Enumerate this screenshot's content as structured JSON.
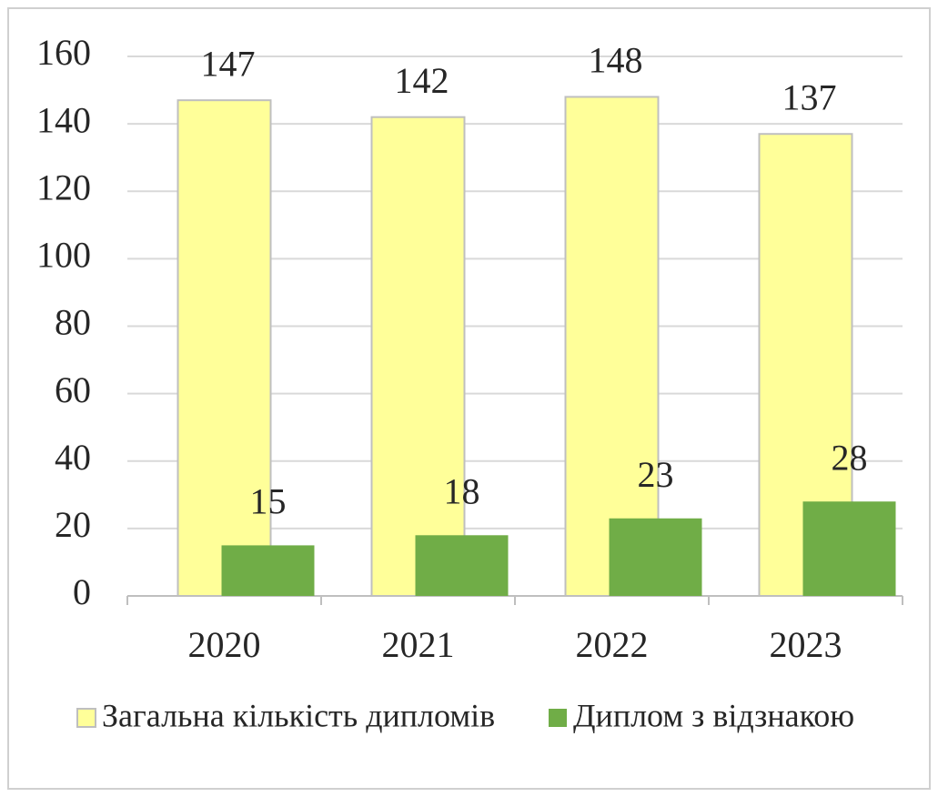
{
  "chart_data": {
    "type": "bar",
    "categories": [
      "2020",
      "2021",
      "2022",
      "2023"
    ],
    "series": [
      {
        "name": "Загальна кількість дипломів",
        "color": "#ffff99",
        "values": [
          147,
          142,
          148,
          137
        ]
      },
      {
        "name": "Диплом з відзнакою",
        "color": "#70ad47",
        "values": [
          15,
          18,
          23,
          28
        ]
      }
    ],
    "ylim": [
      0,
      160
    ],
    "yticks": [
      0,
      20,
      40,
      60,
      80,
      100,
      120,
      140,
      160
    ],
    "grid": true,
    "legend": "bottom"
  }
}
